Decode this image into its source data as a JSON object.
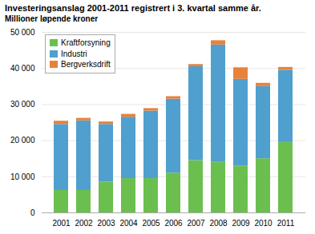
{
  "chart_data": {
    "type": "bar",
    "stacked": true,
    "title": "Investeringsanslag 2001-2011 registrert i 3. kvartal samme år.",
    "subtitle": "Millioner løpende kroner",
    "categories": [
      "2001",
      "2002",
      "2003",
      "2004",
      "2005",
      "2006",
      "2007",
      "2008",
      "2009",
      "2010",
      "2011"
    ],
    "series": [
      {
        "name": "Kraftforsyning",
        "color": "#6bbf4e",
        "values": [
          6200,
          6200,
          8500,
          9500,
          9500,
          11000,
          14500,
          14000,
          13000,
          15000,
          19500
        ]
      },
      {
        "name": "Industri",
        "color": "#4f9fcf",
        "values": [
          18300,
          19300,
          16000,
          17000,
          18700,
          20500,
          26000,
          32500,
          24000,
          20000,
          20000
        ]
      },
      {
        "name": "Bergverksdrift",
        "color": "#e8823a",
        "values": [
          900,
          700,
          700,
          800,
          700,
          700,
          600,
          1200,
          3200,
          900,
          800
        ]
      }
    ],
    "ylim": [
      0,
      50000
    ],
    "yticks": [
      0,
      {
        "value": 10000,
        "label": "10 000"
      },
      {
        "value": 20000,
        "label": "20 000"
      },
      {
        "value": 30000,
        "label": "30 000"
      },
      {
        "value": 40000,
        "label": "40 000"
      },
      {
        "value": 50000,
        "label": "50 000"
      }
    ],
    "grid": true,
    "legend": "upper left"
  }
}
